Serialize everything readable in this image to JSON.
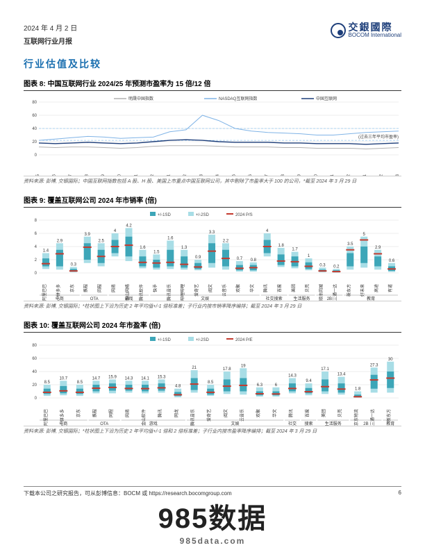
{
  "header": {
    "date": "2024 年 4 月 2 日",
    "subtitle": "互联网行业月报"
  },
  "brand": {
    "cn": "交銀國際",
    "en": "BOCOM International"
  },
  "section_title": "行业估值及比较",
  "chart8": {
    "title": "图表 8: 中国互联网行业 2024/25 年预测市盈率为 15 倍/12 倍",
    "legend": [
      "明晟中国指数",
      "NASDAQ互联网指数",
      "中国互联网"
    ],
    "colors": {
      "msci": "#b0b0b0",
      "nasdaq": "#7fb3e6",
      "china": "#1d3e7a"
    },
    "ylim": [
      0,
      80
    ],
    "ytick": 20,
    "xlabels": [
      "2022-05",
      "2022-06",
      "2022-07",
      "2022-08",
      "2022-09",
      "2022-10",
      "2022-11",
      "2022-12",
      "2023-01",
      "2023-02",
      "2023-03",
      "2023-04",
      "2023-05",
      "2023-06",
      "2023-07",
      "2023-08",
      "2023-09",
      "2023-10",
      "2023-11",
      "2023-12",
      "2024-01",
      "2024-02",
      "2024-03"
    ],
    "series": {
      "msci": [
        12,
        11,
        12,
        12,
        11,
        10,
        11,
        13,
        14,
        14,
        14,
        13,
        12,
        12,
        12,
        11,
        11,
        10,
        10,
        10,
        9,
        10,
        11
      ],
      "nasdaq": [
        22,
        24,
        26,
        28,
        27,
        25,
        26,
        27,
        35,
        38,
        60,
        52,
        40,
        36,
        34,
        33,
        32,
        30,
        30,
        32,
        34,
        35,
        36
      ],
      "china": [
        18,
        17,
        18,
        19,
        18,
        17,
        18,
        20,
        22,
        23,
        22,
        20,
        19,
        19,
        19,
        18,
        18,
        17,
        17,
        17,
        16,
        17,
        18
      ]
    },
    "dashed_levels": [
      40,
      22
    ],
    "annotation": "(过去三年平均市盈率)",
    "source": "资料来源: 彭博, 交银国际；中国互联网指数包括 A 股、H 股、美国上市重点中国互联网公司，其中剔除了市盈率大于 100 的公司，*截至 2024 年 3 月 29 日"
  },
  "chart9": {
    "title": "图表 9: 覆盖互联网公司 2024 年市销率 (倍)",
    "legend": [
      "+/-1SD",
      "+/-2SD",
      "2024 P/S"
    ],
    "colors": {
      "sd1": "#3da6b8",
      "sd2": "#a8dde6",
      "ps": "#c43a2e"
    },
    "ylim": [
      0,
      8
    ],
    "ytick": 2,
    "companies": [
      "阿里巴巴",
      "拼多多",
      "京东",
      "携程",
      "同程",
      "网易",
      "金山网络",
      "腾讯软件",
      "快手",
      "腾讯音乐",
      "哔哩哔哩",
      "爱奇艺",
      "阅文",
      "云音乐",
      "欢聚",
      "华文",
      "腾讯",
      "百度",
      "美团",
      "贝壳",
      "顺丰同城",
      "三通一达",
      "新东方",
      "好未来",
      "高途",
      "有道"
    ],
    "values": [
      1.4,
      2.9,
      0.3,
      3.9,
      2.5,
      4.0,
      4.2,
      1.6,
      1.5,
      1.6,
      1.3,
      0.9,
      3.3,
      2.2,
      0.7,
      0.8,
      4.0,
      1.8,
      1.7,
      1.0,
      0.3,
      0.2,
      3.5,
      5.0,
      2.9,
      0.6
    ],
    "sd1_low": [
      1.0,
      1.0,
      0.2,
      2.0,
      1.5,
      3.0,
      2.5,
      1.0,
      0.8,
      1.0,
      0.8,
      0.6,
      1.5,
      1.0,
      0.4,
      0.4,
      3.0,
      1.2,
      1.0,
      0.6,
      0.2,
      0.1,
      1.0,
      1.5,
      1.0,
      0.3
    ],
    "sd1_high": [
      2.2,
      3.5,
      0.6,
      4.5,
      3.5,
      5.0,
      5.5,
      2.5,
      2.0,
      3.5,
      2.5,
      1.5,
      4.5,
      3.5,
      1.2,
      1.2,
      5.0,
      2.8,
      2.5,
      1.6,
      0.5,
      0.4,
      3.0,
      4.0,
      2.5,
      1.0
    ],
    "sd2_low": [
      0.6,
      0.5,
      0.1,
      1.5,
      1.0,
      2.5,
      1.8,
      0.7,
      0.5,
      0.6,
      0.5,
      0.4,
      0.8,
      0.5,
      0.2,
      0.2,
      2.5,
      0.9,
      0.7,
      0.4,
      0.1,
      0.05,
      0.5,
      0.8,
      0.5,
      0.15
    ],
    "sd2_high": [
      3.0,
      4.5,
      0.9,
      5.5,
      4.5,
      6.0,
      6.8,
      3.5,
      2.8,
      4.9,
      3.5,
      2.0,
      5.8,
      4.5,
      1.8,
      1.6,
      6.0,
      3.8,
      3.2,
      2.2,
      0.8,
      0.6,
      4.0,
      5.5,
      3.5,
      1.5
    ],
    "groups": [
      {
        "label": "电商",
        "span": [
          0,
          2
        ]
      },
      {
        "label": "OTA",
        "span": [
          3,
          4
        ]
      },
      {
        "label": "游戏",
        "span": [
          5,
          7
        ]
      },
      {
        "label": "文娱",
        "span": [
          8,
          15
        ]
      },
      {
        "label": "社交搜索",
        "span": [
          16,
          17
        ]
      },
      {
        "label": "生活服务",
        "span": [
          18,
          19
        ]
      },
      {
        "label": "2B",
        "span": [
          20,
          21
        ]
      },
      {
        "label": "教育",
        "span": [
          22,
          25
        ]
      }
    ],
    "source": "资料来源: 彭博, 交银国际；*柱状图上下沿为历史 2 年平均值+/-1 倍标准差；子行业内按市销率降序编排；截至 2024 年 3 月 29 日"
  },
  "chart10": {
    "title": "图表 10: 覆盖互联网公司 2024 年市盈率 (倍)",
    "legend": [
      "+/-1SD",
      "+/-2SD",
      "2024 P/E"
    ],
    "colors": {
      "sd1": "#3da6b8",
      "sd2": "#a8dde6",
      "pe": "#c43a2e"
    },
    "ylim": [
      0,
      80
    ],
    "ytick": 20,
    "companies": [
      "阿里巴巴",
      "拼多多",
      "京东",
      "携程",
      "同程",
      "网易",
      "金山软件",
      "腾讯",
      "网龙",
      "腾讯音乐",
      "爱奇艺",
      "阅文",
      "云音乐",
      "欢聚",
      "华文",
      "腾讯",
      "百度",
      "美团",
      "贝壳",
      "京东物流",
      "三通一达",
      "新东方"
    ],
    "values": [
      8.5,
      10.7,
      8.5,
      14.7,
      15.9,
      14.3,
      14.1,
      15.3,
      4.8,
      21.0,
      8.5,
      17.8,
      19.0,
      6.3,
      6.0,
      14.3,
      9.4,
      17.1,
      13.4,
      1.8,
      27.3,
      30.0
    ],
    "sd1_low": [
      6,
      7,
      6,
      10,
      11,
      11,
      10,
      11,
      3,
      12,
      5,
      10,
      10,
      4,
      4,
      10,
      7,
      10,
      8,
      1,
      14,
      15
    ],
    "sd1_high": [
      14,
      18,
      14,
      20,
      22,
      20,
      20,
      22,
      9,
      30,
      14,
      28,
      30,
      10,
      10,
      22,
      15,
      28,
      22,
      5,
      35,
      40
    ],
    "sd2_low": [
      3,
      4,
      3,
      7,
      7,
      8,
      7,
      8,
      1,
      8,
      3,
      6,
      5,
      2,
      2,
      7,
      4,
      6,
      5,
      0.5,
      8,
      8
    ],
    "sd2_high": [
      20,
      26,
      20,
      26,
      28,
      26,
      26,
      28,
      14,
      42,
      20,
      40,
      45,
      16,
      16,
      30,
      22,
      40,
      32,
      10,
      46,
      55
    ],
    "groups": [
      {
        "label": "电商",
        "span": [
          0,
          2
        ]
      },
      {
        "label": "OTA",
        "span": [
          3,
          4
        ]
      },
      {
        "label": "游戏",
        "span": [
          5,
          8
        ]
      },
      {
        "label": "文娱",
        "span": [
          9,
          14
        ]
      },
      {
        "label": "社交",
        "span": [
          15,
          15
        ]
      },
      {
        "label": "搜索",
        "span": [
          16,
          16
        ]
      },
      {
        "label": "生活服务",
        "span": [
          17,
          18
        ]
      },
      {
        "label": "2B",
        "span": [
          19,
          20
        ]
      },
      {
        "label": "教育",
        "span": [
          21,
          21
        ]
      }
    ],
    "source": "资料来源: 彭博, 交银国际；*柱状图上下沿为历史 2 年平均值+/-1 倍和 2 倍标准差；子行业内按市盈率降序编排；截至 2024 年 3 月 29 日"
  },
  "footer": {
    "left": "下载本公司之研究报告，可从彭博信息：BOCM 或 https://research.bocomgroup.com",
    "page": "6"
  },
  "watermark": {
    "main": "985数据",
    "sub": "985data.com"
  }
}
